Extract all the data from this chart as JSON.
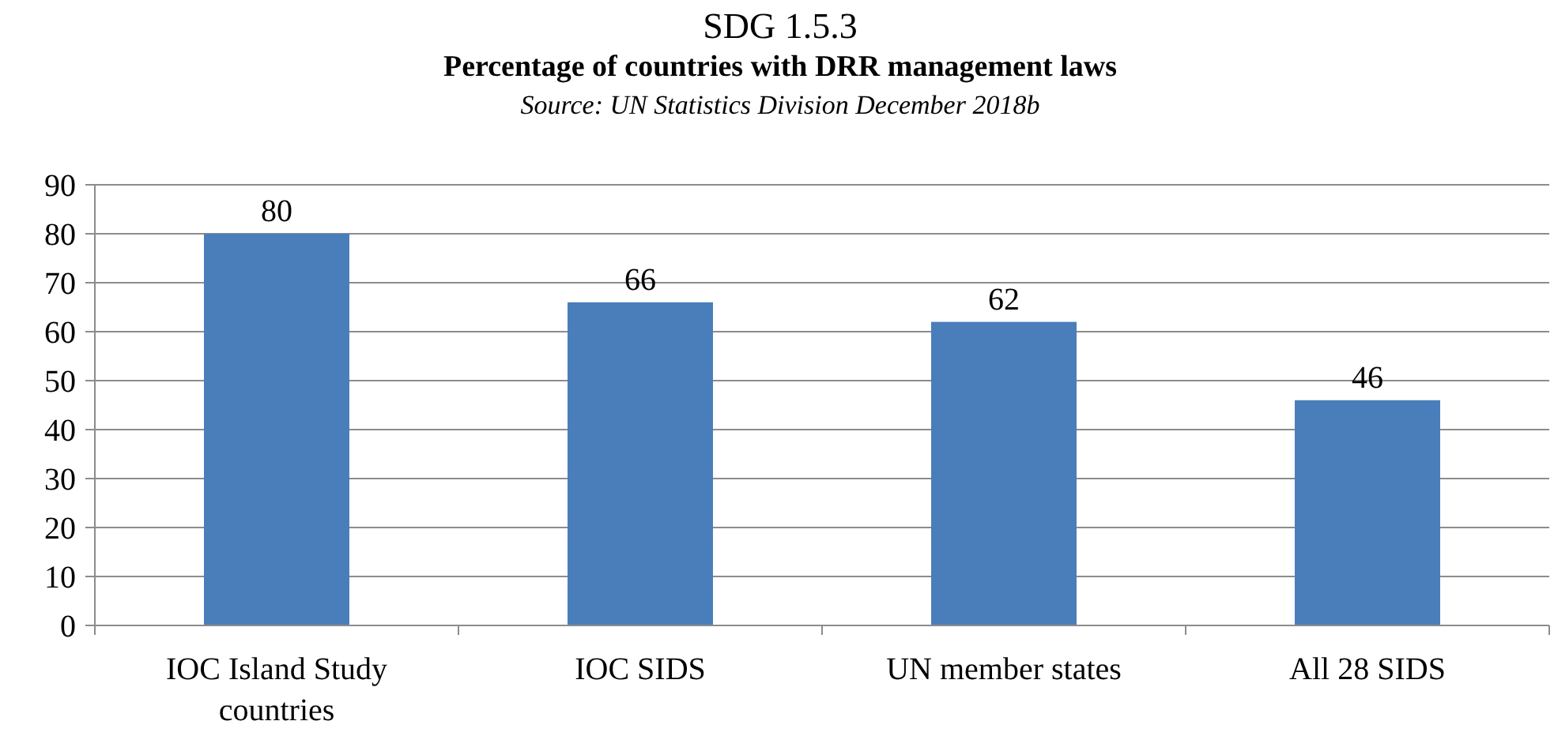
{
  "chart_data": {
    "type": "bar",
    "title": "SDG 1.5.3",
    "subtitle": "Percentage of countries with DRR management laws",
    "annotations": [
      "Source: UN Statistics Division December 2018b"
    ],
    "categories": [
      "IOC Island Study countries",
      "IOC SIDS",
      "UN member states",
      "All 28 SIDS"
    ],
    "values": [
      80,
      66,
      62,
      46
    ],
    "color": "#4a7ebb",
    "ylim": [
      0,
      90
    ],
    "yticks": [
      0,
      10,
      20,
      30,
      40,
      50,
      60,
      70,
      80,
      90
    ],
    "grid": "y",
    "data_labels": true
  }
}
